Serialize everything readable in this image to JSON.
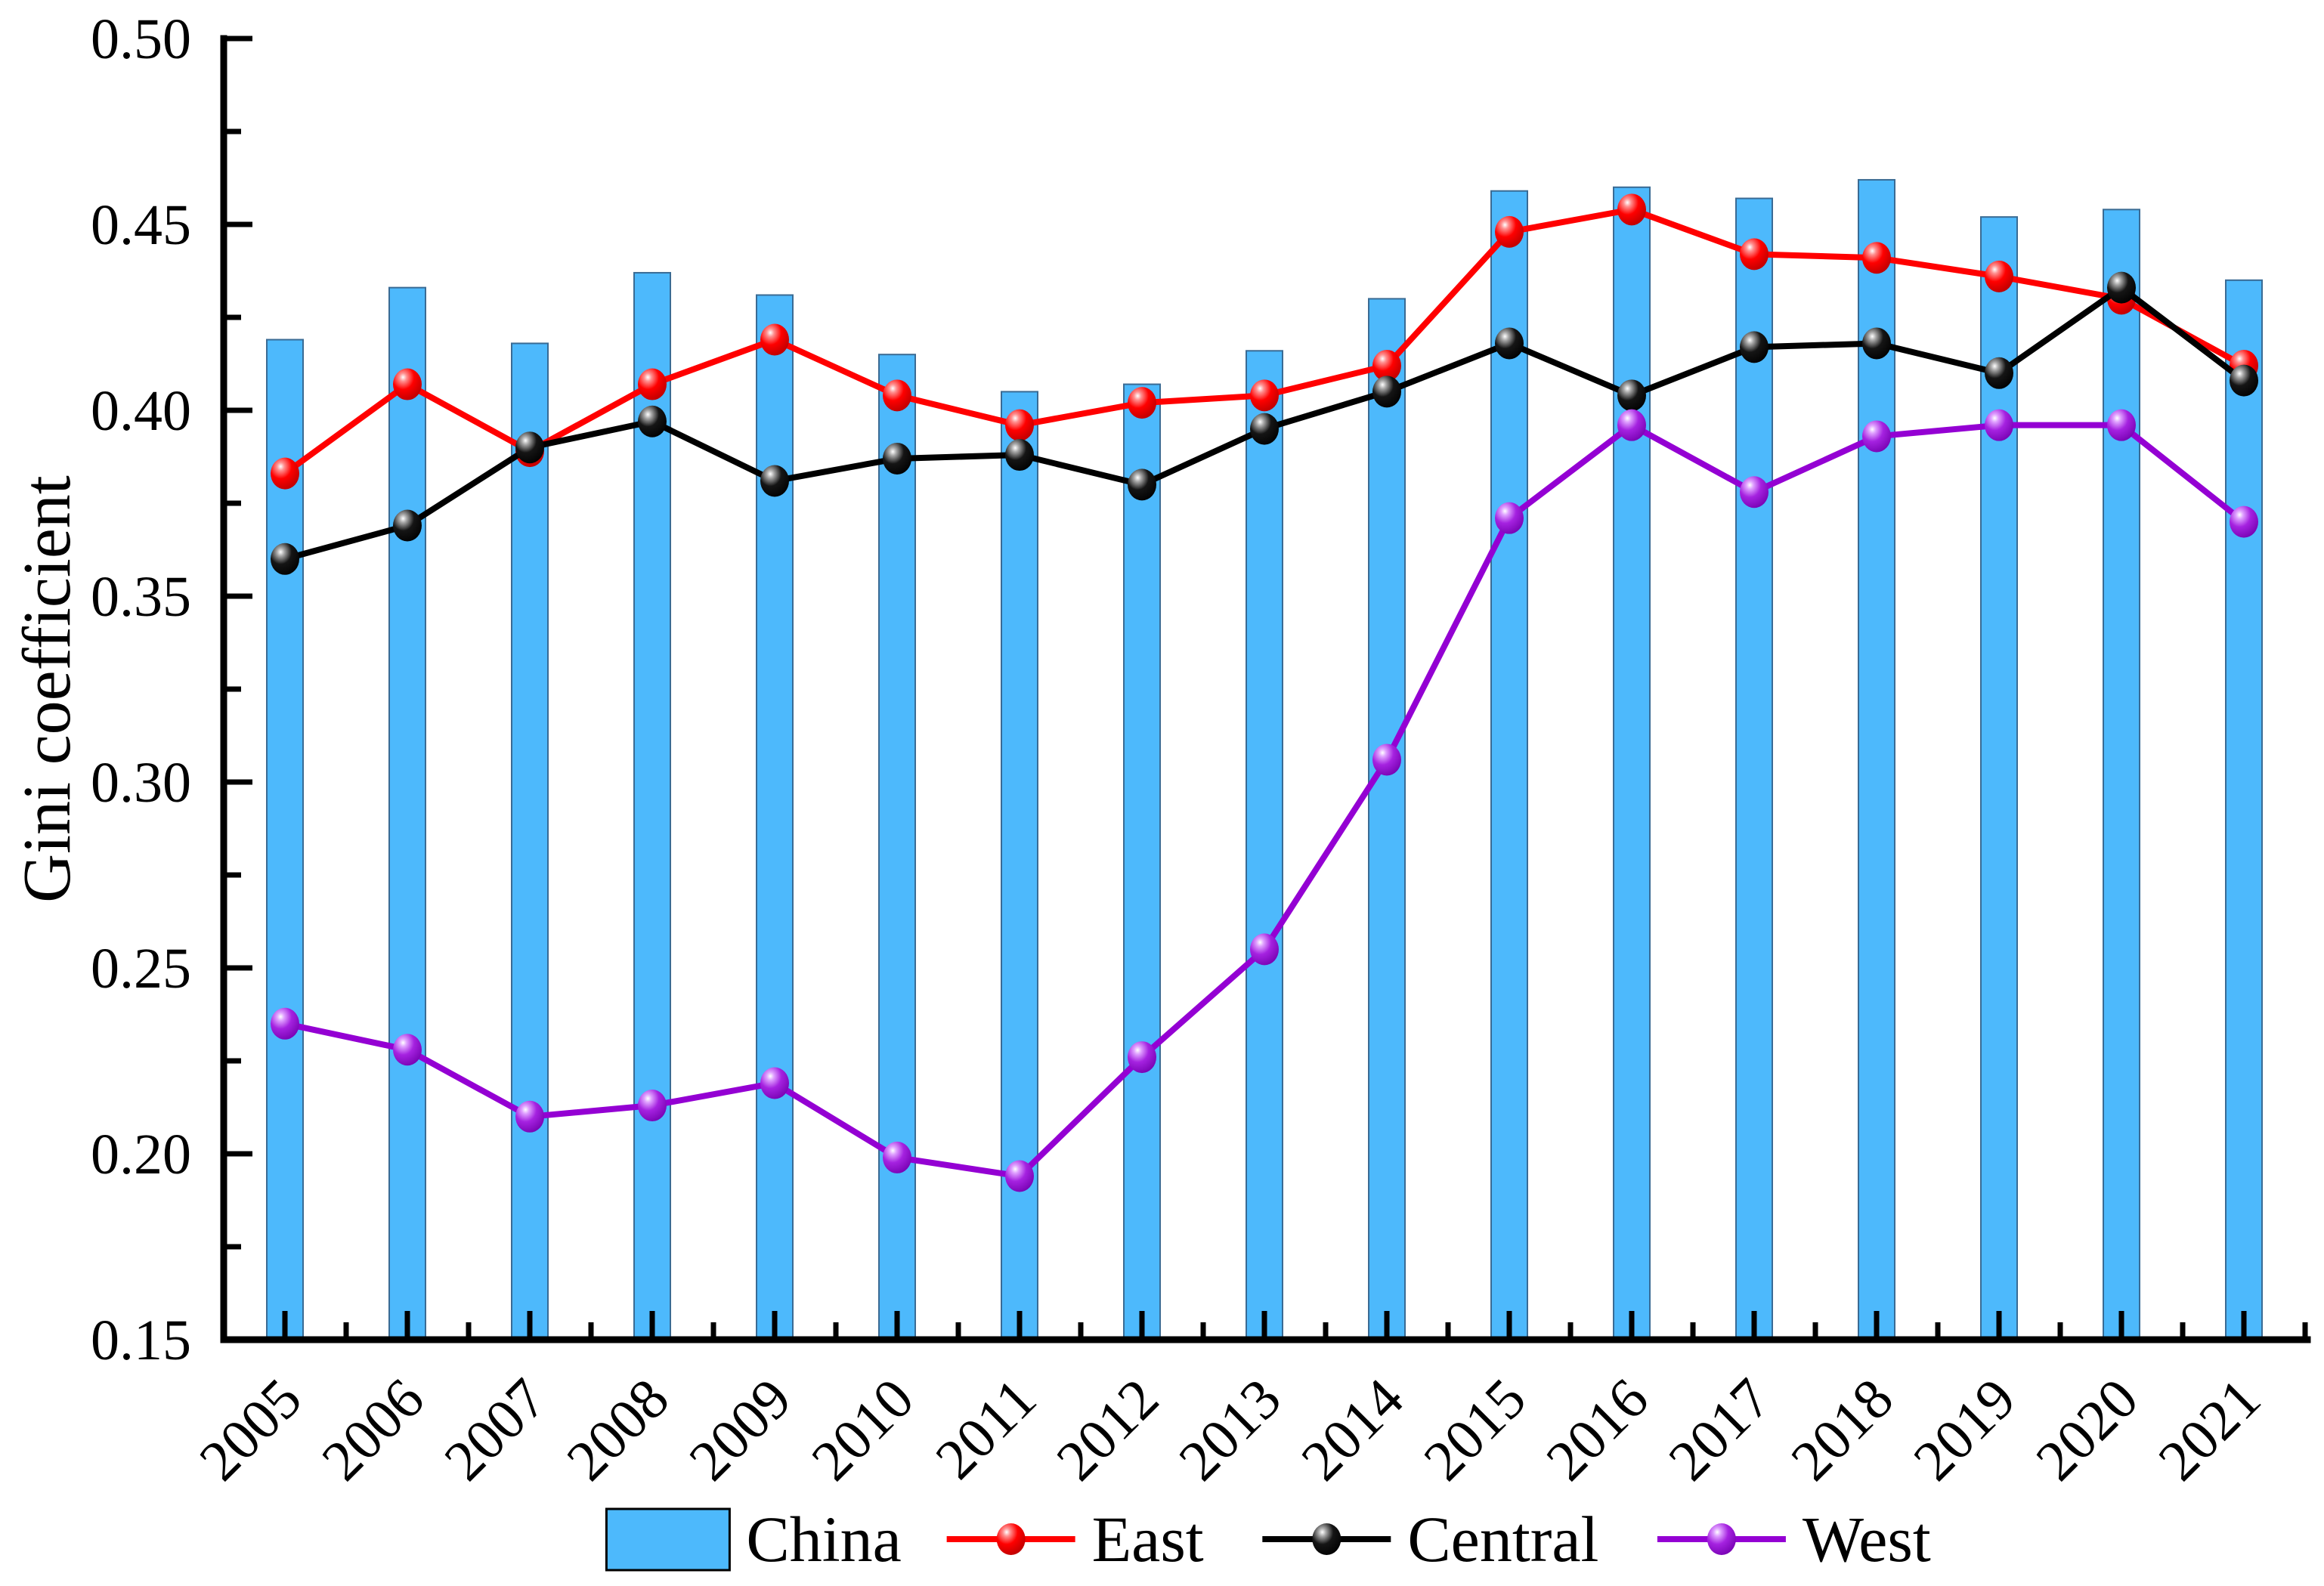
{
  "chart_data": {
    "type": "bar",
    "title": "",
    "xlabel": "",
    "ylabel": "Gini coefficient",
    "ylim": [
      0.15,
      0.5
    ],
    "ytick_step": 0.05,
    "yminor_step": 0.025,
    "ytick_labels": [
      "0.15",
      "0.20",
      "0.25",
      "0.30",
      "0.35",
      "0.40",
      "0.45",
      "0.50"
    ],
    "grid": "off",
    "legend_position": "bottom",
    "categories": [
      "2005",
      "2006",
      "2007",
      "2008",
      "2009",
      "2010",
      "2011",
      "2012",
      "2013",
      "2014",
      "2015",
      "2016",
      "2017",
      "2018",
      "2019",
      "2020",
      "2021"
    ],
    "series": [
      {
        "name": "China",
        "type": "bar",
        "color": "#4DB9FC",
        "border_color": "#3A6B94",
        "values": [
          0.419,
          0.433,
          0.418,
          0.437,
          0.431,
          0.415,
          0.405,
          0.407,
          0.416,
          0.43,
          0.459,
          0.46,
          0.457,
          0.462,
          0.452,
          0.454,
          0.435
        ]
      },
      {
        "name": "East",
        "type": "line",
        "color": "#FF0000",
        "marker": "ball",
        "values": [
          0.383,
          0.407,
          0.389,
          0.407,
          0.419,
          0.404,
          0.396,
          0.402,
          0.404,
          0.412,
          0.448,
          0.454,
          0.442,
          0.441,
          0.436,
          0.43,
          0.412
        ]
      },
      {
        "name": "Central",
        "type": "line",
        "color": "#000000",
        "marker": "ball",
        "values": [
          0.36,
          0.369,
          0.39,
          0.397,
          0.381,
          0.387,
          0.388,
          0.38,
          0.395,
          0.405,
          0.418,
          0.404,
          0.417,
          0.418,
          0.41,
          0.433,
          0.408
        ]
      },
      {
        "name": "West",
        "type": "line",
        "color": "#9400D3",
        "marker": "ball",
        "values": [
          0.235,
          0.228,
          0.21,
          0.213,
          0.219,
          0.199,
          0.194,
          0.226,
          0.255,
          0.306,
          0.371,
          0.396,
          0.378,
          0.393,
          0.396,
          0.396,
          0.37
        ]
      }
    ]
  }
}
